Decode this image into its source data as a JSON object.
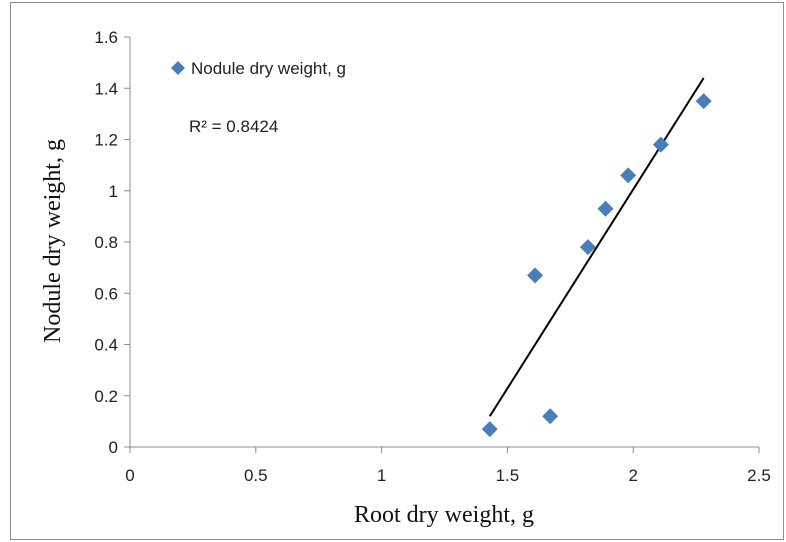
{
  "chart_data": {
    "type": "scatter",
    "title": "",
    "xlabel": "Root dry weight, g",
    "ylabel": "Nodule dry weight, g",
    "xlim": [
      0,
      2.5
    ],
    "ylim": [
      0,
      1.6
    ],
    "x_ticks": [
      "0",
      "0.5",
      "1",
      "1.5",
      "2",
      "2.5"
    ],
    "y_ticks": [
      "0",
      "0.2",
      "0.4",
      "0.6",
      "0.8",
      "1",
      "1.2",
      "1.4",
      "1.6"
    ],
    "grid": false,
    "legend_position": "top-left",
    "series": [
      {
        "name": "Nodule dry weight, g",
        "color": "#4a7ebb",
        "marker": "diamond",
        "points": [
          {
            "x": 1.43,
            "y": 0.07
          },
          {
            "x": 1.61,
            "y": 0.67
          },
          {
            "x": 1.67,
            "y": 0.12
          },
          {
            "x": 1.82,
            "y": 0.78
          },
          {
            "x": 1.89,
            "y": 0.93
          },
          {
            "x": 1.98,
            "y": 1.06
          },
          {
            "x": 2.11,
            "y": 1.18
          },
          {
            "x": 2.28,
            "y": 1.35
          }
        ]
      }
    ],
    "trendline": {
      "type": "linear",
      "color": "#000000",
      "x_range": [
        1.43,
        2.28
      ],
      "y_values": [
        0.12,
        1.44
      ]
    },
    "annotation": "R² = 0.8424"
  }
}
